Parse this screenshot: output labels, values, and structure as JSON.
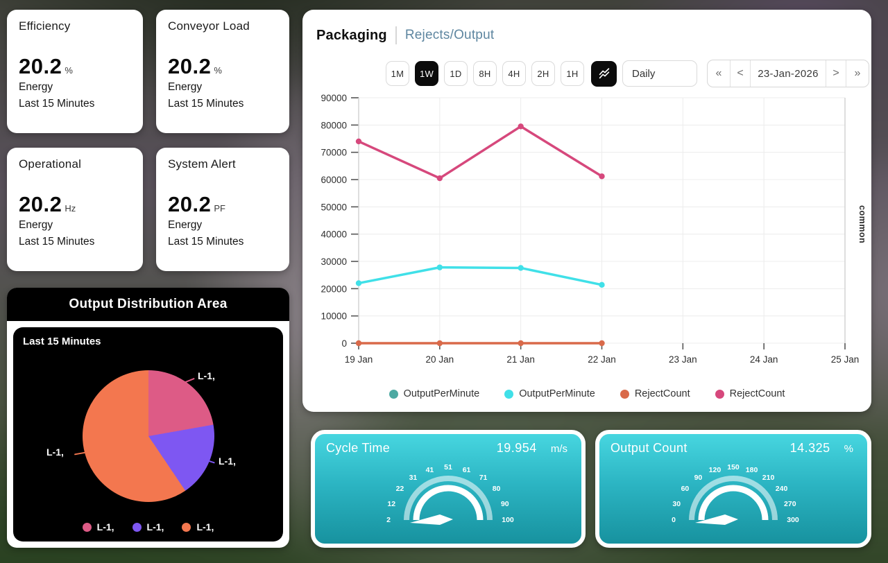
{
  "kpi_cards": [
    {
      "title": "Efficiency",
      "value": "20.2",
      "unit": "%",
      "line1": "Energy",
      "line2": "Last 15 Minutes"
    },
    {
      "title": "Conveyor Load",
      "value": "20.2",
      "unit": "%",
      "line1": "Energy",
      "line2": "Last 15 Minutes"
    },
    {
      "title": "Operational",
      "value": "20.2",
      "unit": "Hz",
      "line1": "Energy",
      "line2": "Last 15 Minutes"
    },
    {
      "title": "System Alert",
      "value": "20.2",
      "unit": "PF",
      "line1": "Energy",
      "line2": "Last 15 Minutes"
    }
  ],
  "distribution": {
    "title": "Output Distribution Area",
    "subtitle": "Last 15 Minutes",
    "slices": [
      {
        "label": "L-1,",
        "color": "#dd5b86",
        "start_deg": 0,
        "end_deg": 80
      },
      {
        "label": "L-1,",
        "color": "#7e57f2",
        "start_deg": 80,
        "end_deg": 146
      },
      {
        "label": "L-1,",
        "color": "#f3774f",
        "start_deg": 146,
        "end_deg": 360
      }
    ]
  },
  "chart_panel": {
    "title": "Packaging",
    "subtitle": "Rejects/Output",
    "ranges": [
      "1M",
      "1W",
      "1D",
      "8H",
      "4H",
      "2H",
      "1H"
    ],
    "active_range": "1W",
    "chart_type_icon": "trend-lines-icon",
    "interval": "Daily",
    "nav_first": "«",
    "nav_prev": "<",
    "nav_next": ">",
    "nav_last": "»",
    "date": "23-Jan-2026",
    "axis_right_label": "common"
  },
  "chart_data": {
    "type": "line",
    "x_labels": [
      "19 Jan",
      "20 Jan",
      "21 Jan",
      "22 Jan",
      "23 Jan",
      "24 Jan",
      "25 Jan"
    ],
    "y_ticks": [
      0,
      10000,
      20000,
      30000,
      40000,
      50000,
      60000,
      70000,
      80000,
      90000
    ],
    "ylim": [
      0,
      90000
    ],
    "grid": true,
    "legend_position": "bottom",
    "series": [
      {
        "name": "OutputPerMinute",
        "color": "#4da9a2",
        "values": []
      },
      {
        "name": "OutputPerMinute",
        "color": "#40e0e8",
        "values": [
          22000,
          27800,
          27600,
          21400
        ]
      },
      {
        "name": "RejectCount",
        "color": "#d96a4a",
        "values": [
          0,
          0,
          0,
          0
        ]
      },
      {
        "name": "RejectCount",
        "color": "#d6487c",
        "values": [
          74000,
          60500,
          79500,
          61200
        ]
      }
    ]
  },
  "gauges": [
    {
      "title": "Cycle Time",
      "value": "19.954",
      "unit": "m/s",
      "ticks": [
        "2",
        "12",
        "22",
        "31",
        "41",
        "51",
        "61",
        "71",
        "80",
        "90",
        "100"
      ]
    },
    {
      "title": "Output Count",
      "value": "14.325",
      "unit": "%",
      "ticks": [
        "0",
        "30",
        "60",
        "90",
        "120",
        "150",
        "180",
        "210",
        "240",
        "270",
        "300"
      ]
    }
  ]
}
